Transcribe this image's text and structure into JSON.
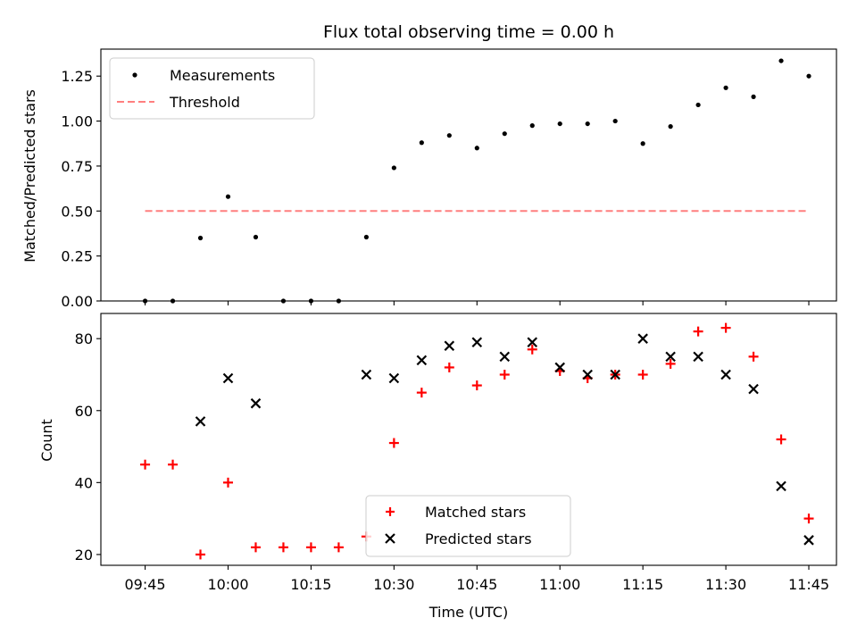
{
  "chart_data": [
    {
      "type": "scatter",
      "title": "Flux total observing time = 0.00 h",
      "xlabel": "",
      "ylabel": "Matched/Predicted stars",
      "ylim": [
        0,
        1.4
      ],
      "yticks": [
        "0.00",
        "0.25",
        "0.50",
        "0.75",
        "1.00",
        "1.25"
      ],
      "grid": false,
      "legend_position": "upper-left",
      "series": [
        {
          "name": "Measurements",
          "marker": "dot",
          "color": "#000000",
          "x": [
            "09:45",
            "09:50",
            "09:55",
            "10:00",
            "10:05",
            "10:10",
            "10:15",
            "10:20",
            "10:25",
            "10:30",
            "10:35",
            "10:40",
            "10:45",
            "10:50",
            "10:55",
            "11:00",
            "11:05",
            "11:10",
            "11:15",
            "11:20",
            "11:25",
            "11:30",
            "11:35",
            "11:40",
            "11:45"
          ],
          "y": [
            0.0,
            0.0,
            0.35,
            0.58,
            0.355,
            0.0,
            0.0,
            0.0,
            0.355,
            0.74,
            0.88,
            0.92,
            0.85,
            0.93,
            0.975,
            0.985,
            0.985,
            1.0,
            0.875,
            0.97,
            1.09,
            1.185,
            1.135,
            1.335,
            1.25
          ]
        }
      ],
      "threshold": {
        "name": "Threshold",
        "value": 0.5,
        "x_start": "09:45",
        "x_end": "11:45",
        "color": "#ff7f7f",
        "style": "dashed"
      }
    },
    {
      "type": "scatter",
      "title": "",
      "xlabel": "Time (UTC)",
      "ylabel": "Count",
      "ylim": [
        17,
        87
      ],
      "yticks": [
        "20",
        "40",
        "60",
        "80"
      ],
      "xticks": [
        "09:45",
        "10:00",
        "10:15",
        "10:30",
        "10:45",
        "11:00",
        "11:15",
        "11:30",
        "11:45"
      ],
      "xlim": [
        "09:37",
        "11:50"
      ],
      "grid": false,
      "legend_position": "lower-center",
      "series": [
        {
          "name": "Matched stars",
          "marker": "plus",
          "color": "#ff0000",
          "x": [
            "09:45",
            "09:50",
            "09:55",
            "10:00",
            "10:05",
            "10:10",
            "10:15",
            "10:20",
            "10:25",
            "10:30",
            "10:35",
            "10:40",
            "10:45",
            "10:50",
            "10:55",
            "11:00",
            "11:05",
            "11:10",
            "11:15",
            "11:20",
            "11:25",
            "11:30",
            "11:35",
            "11:40",
            "11:45"
          ],
          "y": [
            45,
            45,
            20,
            40,
            22,
            22,
            22,
            22,
            25,
            51,
            65,
            72,
            67,
            70,
            77,
            71,
            69,
            70,
            70,
            73,
            82,
            83,
            75,
            52,
            30
          ]
        },
        {
          "name": "Predicted stars",
          "marker": "x",
          "color": "#000000",
          "x": [
            "09:55",
            "10:00",
            "10:05",
            "10:25",
            "10:30",
            "10:35",
            "10:40",
            "10:45",
            "10:50",
            "10:55",
            "11:00",
            "11:05",
            "11:10",
            "11:15",
            "11:20",
            "11:25",
            "11:30",
            "11:35",
            "11:40",
            "11:45"
          ],
          "y": [
            57,
            69,
            62,
            70,
            69,
            74,
            78,
            79,
            75,
            79,
            72,
            70,
            70,
            80,
            75,
            75,
            70,
            66,
            39,
            24
          ]
        }
      ]
    }
  ]
}
